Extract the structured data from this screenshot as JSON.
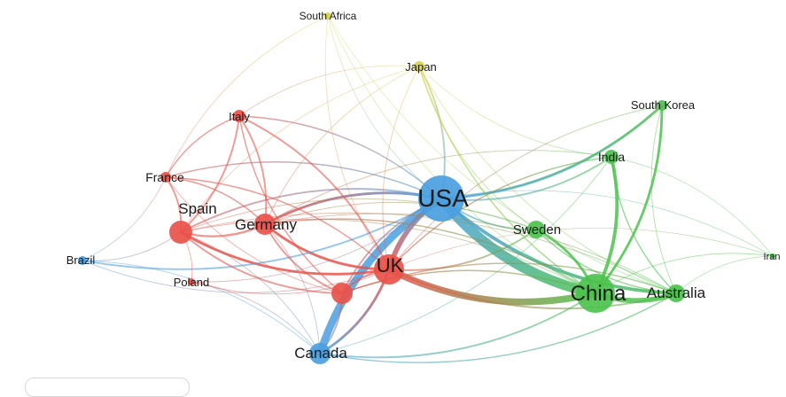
{
  "title": "",
  "clusters": {
    "red": "#e8534a",
    "blue": "#4a9fe0",
    "green": "#4cc24c",
    "yellow": "#d9d24a"
  },
  "nodes": [
    {
      "id": "south_africa",
      "label": "South Africa",
      "cluster": "yellow",
      "weight": 1
    },
    {
      "id": "japan",
      "label": "Japan",
      "cluster": "yellow",
      "weight": 2
    },
    {
      "id": "south_korea",
      "label": "South Korea",
      "cluster": "green",
      "weight": 2
    },
    {
      "id": "italy",
      "label": "Italy",
      "cluster": "red",
      "weight": 2
    },
    {
      "id": "india",
      "label": "India",
      "cluster": "green",
      "weight": 2
    },
    {
      "id": "france",
      "label": "France",
      "cluster": "red",
      "weight": 2
    },
    {
      "id": "usa",
      "label": "USA",
      "cluster": "blue",
      "weight": 6
    },
    {
      "id": "spain",
      "label": "Spain",
      "cluster": "red",
      "weight": 3
    },
    {
      "id": "germany",
      "label": "Germany",
      "cluster": "red",
      "weight": 3
    },
    {
      "id": "sweden",
      "label": "Sweden",
      "cluster": "green",
      "weight": 3
    },
    {
      "id": "iran",
      "label": "Iran",
      "cluster": "green",
      "weight": 1
    },
    {
      "id": "brazil",
      "label": "Brazil",
      "cluster": "blue",
      "weight": 1
    },
    {
      "id": "uk",
      "label": "UK",
      "cluster": "red",
      "weight": 4
    },
    {
      "id": "poland",
      "label": "Poland",
      "cluster": "red",
      "weight": 1
    },
    {
      "id": "china",
      "label": "China",
      "cluster": "green",
      "weight": 5
    },
    {
      "id": "australia",
      "label": "Australia",
      "cluster": "green",
      "weight": 3
    },
    {
      "id": "canada",
      "label": "Canada",
      "cluster": "blue",
      "weight": 3
    },
    {
      "id": "unlabeled_red",
      "label": "",
      "cluster": "red",
      "weight": 3
    }
  ],
  "edges": [
    {
      "s": "usa",
      "t": "china",
      "w": 12
    },
    {
      "s": "usa",
      "t": "canada",
      "w": 9
    },
    {
      "s": "uk",
      "t": "china",
      "w": 8
    },
    {
      "s": "usa",
      "t": "uk",
      "w": 6
    },
    {
      "s": "china",
      "t": "australia",
      "w": 6
    },
    {
      "s": "usa",
      "t": "australia",
      "w": 4
    },
    {
      "s": "china",
      "t": "india",
      "w": 4
    },
    {
      "s": "china",
      "t": "sweden",
      "w": 3
    },
    {
      "s": "usa",
      "t": "south_korea",
      "w": 3
    },
    {
      "s": "china",
      "t": "south_korea",
      "w": 3
    },
    {
      "s": "canada",
      "t": "uk",
      "w": 3
    },
    {
      "s": "usa",
      "t": "germany",
      "w": 3
    },
    {
      "s": "spain",
      "t": "uk",
      "w": 3
    },
    {
      "s": "germany",
      "t": "uk",
      "w": 3
    },
    {
      "s": "brazil",
      "t": "usa",
      "w": 2
    },
    {
      "s": "usa",
      "t": "japan",
      "w": 2
    },
    {
      "s": "usa",
      "t": "sweden",
      "w": 2
    },
    {
      "s": "usa",
      "t": "india",
      "w": 2
    },
    {
      "s": "usa",
      "t": "spain",
      "w": 2
    },
    {
      "s": "usa",
      "t": "italy",
      "w": 1.5
    },
    {
      "s": "usa",
      "t": "france",
      "w": 1.5
    },
    {
      "s": "usa",
      "t": "unlabeled_red",
      "w": 2
    },
    {
      "s": "uk",
      "t": "australia",
      "w": 2
    },
    {
      "s": "uk",
      "t": "sweden",
      "w": 2
    },
    {
      "s": "uk",
      "t": "italy",
      "w": 2
    },
    {
      "s": "uk",
      "t": "france",
      "w": 1.5
    },
    {
      "s": "uk",
      "t": "unlabeled_red",
      "w": 2
    },
    {
      "s": "spain",
      "t": "germany",
      "w": 2.5
    },
    {
      "s": "spain",
      "t": "italy",
      "w": 2
    },
    {
      "s": "spain",
      "t": "france",
      "w": 2
    },
    {
      "s": "germany",
      "t": "italy",
      "w": 2
    },
    {
      "s": "germany",
      "t": "france",
      "w": 1.5
    },
    {
      "s": "germany",
      "t": "unlabeled_red",
      "w": 2
    },
    {
      "s": "spain",
      "t": "unlabeled_red",
      "w": 2
    },
    {
      "s": "italy",
      "t": "unlabeled_red",
      "w": 1.5
    },
    {
      "s": "france",
      "t": "unlabeled_red",
      "w": 1
    },
    {
      "s": "canada",
      "t": "china",
      "w": 2
    },
    {
      "s": "canada",
      "t": "australia",
      "w": 1.5
    },
    {
      "s": "canada",
      "t": "unlabeled_red",
      "w": 2
    },
    {
      "s": "canada",
      "t": "spain",
      "w": 1
    },
    {
      "s": "canada",
      "t": "germany",
      "w": 1
    },
    {
      "s": "canada",
      "t": "brazil",
      "w": 1
    },
    {
      "s": "canada",
      "t": "poland",
      "w": 1
    },
    {
      "s": "brazil",
      "t": "spain",
      "w": 1
    },
    {
      "s": "brazil",
      "t": "uk",
      "w": 1
    },
    {
      "s": "brazil",
      "t": "france",
      "w": 0.8
    },
    {
      "s": "poland",
      "t": "uk",
      "w": 1
    },
    {
      "s": "poland",
      "t": "spain",
      "w": 1
    },
    {
      "s": "poland",
      "t": "usa",
      "w": 1
    },
    {
      "s": "japan",
      "t": "china",
      "w": 1.5
    },
    {
      "s": "japan",
      "t": "uk",
      "w": 1
    },
    {
      "s": "japan",
      "t": "germany",
      "w": 1
    },
    {
      "s": "japan",
      "t": "australia",
      "w": 1
    },
    {
      "s": "japan",
      "t": "italy",
      "w": 0.8
    },
    {
      "s": "japan",
      "t": "spain",
      "w": 0.8
    },
    {
      "s": "japan",
      "t": "india",
      "w": 0.8
    },
    {
      "s": "japan",
      "t": "sweden",
      "w": 1
    },
    {
      "s": "south_africa",
      "t": "usa",
      "w": 0.8
    },
    {
      "s": "south_africa",
      "t": "uk",
      "w": 0.8
    },
    {
      "s": "south_africa",
      "t": "china",
      "w": 0.8
    },
    {
      "s": "south_africa",
      "t": "france",
      "w": 0.6
    },
    {
      "s": "south_africa",
      "t": "australia",
      "w": 0.6
    },
    {
      "s": "india",
      "t": "uk",
      "w": 1.5
    },
    {
      "s": "india",
      "t": "australia",
      "w": 1.5
    },
    {
      "s": "india",
      "t": "germany",
      "w": 1
    },
    {
      "s": "south_korea",
      "t": "australia",
      "w": 1
    },
    {
      "s": "south_korea",
      "t": "uk",
      "w": 1
    },
    {
      "s": "sweden",
      "t": "australia",
      "w": 1.5
    },
    {
      "s": "sweden",
      "t": "germany",
      "w": 1
    },
    {
      "s": "sweden",
      "t": "spain",
      "w": 1
    },
    {
      "s": "iran",
      "t": "china",
      "w": 1
    },
    {
      "s": "iran",
      "t": "usa",
      "w": 0.8
    },
    {
      "s": "iran",
      "t": "australia",
      "w": 0.8
    },
    {
      "s": "iran",
      "t": "uk",
      "w": 0.6
    },
    {
      "s": "iran",
      "t": "india",
      "w": 0.6
    },
    {
      "s": "australia",
      "t": "unlabeled_red",
      "w": 1.5
    },
    {
      "s": "australia",
      "t": "germany",
      "w": 1
    },
    {
      "s": "australia",
      "t": "spain",
      "w": 1
    },
    {
      "s": "china",
      "t": "germany",
      "w": 1.5
    },
    {
      "s": "china",
      "t": "spain",
      "w": 1
    },
    {
      "s": "china",
      "t": "unlabeled_red",
      "w": 1.5
    },
    {
      "s": "italy",
      "t": "france",
      "w": 1.5
    },
    {
      "s": "canada",
      "t": "india",
      "w": 1
    }
  ]
}
